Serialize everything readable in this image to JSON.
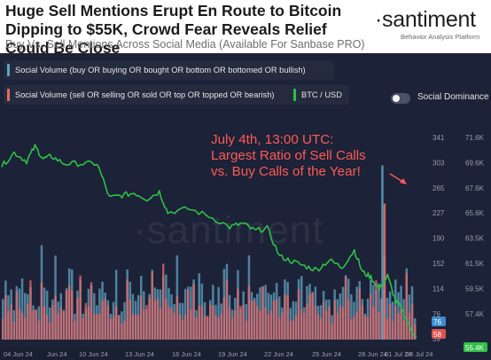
{
  "header": {
    "title": "Huge Sell Mentions Erupt En Route to Bitcoin Dipping to $55K, Crowd Fear Reveals Relief Could Be Close",
    "subtitle": "Buy Vs. Sell Mentions Across Social Media (Available For Sanbase PRO)"
  },
  "brand": {
    "logo": "·santiment",
    "tagline": "Behavior Analysis Platform",
    "watermark": "·santiment"
  },
  "legend": {
    "buy": "Social Volume (buy OR buying OR bought OR bottom OR bottomed OR bullish)",
    "sell": "Social Volume (sell OR selling OR sold OR top OR topped OR bearish)",
    "btc": "BTC / USD",
    "dominance": "Social Dominance"
  },
  "annotation": "July 4th, 13:00 UTC: Largest Ratio of Sell Calls vs. Buy Calls of the Year!",
  "colors": {
    "buy": "#5fa3c2",
    "sell": "#e36a6a",
    "btc": "#2fbf47",
    "annotation": "#ff5a55",
    "background": "#1c2237"
  },
  "chart_data": {
    "type": "bar",
    "x_ticks": [
      "04 Jun 24",
      "Jun 24",
      "10 Jun 24",
      "13 Jun 24",
      "16 Jun 24",
      "19 Jun 24",
      "22 Jun 24",
      "25 Jun 24",
      "28 Jun 24",
      "01 Jul 24",
      "04 Jul 24"
    ],
    "volume_axis": {
      "ticks": [
        341,
        303,
        265,
        227,
        190,
        152,
        114,
        76,
        39
      ],
      "current": 76
    },
    "price_axis": {
      "ticks": [
        "71.6K",
        "69.6K",
        "67.6K",
        "65.6K",
        "63.5K",
        "61.5K",
        "59.5K",
        "57.4K"
      ],
      "current": "55.4K",
      "range": [
        55400,
        71600
      ]
    },
    "sell_current": 58,
    "btc_anchors": [
      [
        0,
        69400
      ],
      [
        0.03,
        70500
      ],
      [
        0.06,
        69800
      ],
      [
        0.08,
        71000
      ],
      [
        0.1,
        70000
      ],
      [
        0.12,
        70200
      ],
      [
        0.15,
        69600
      ],
      [
        0.19,
        69600
      ],
      [
        0.23,
        69600
      ],
      [
        0.26,
        66800
      ],
      [
        0.29,
        67000
      ],
      [
        0.32,
        67200
      ],
      [
        0.35,
        66700
      ],
      [
        0.38,
        67300
      ],
      [
        0.4,
        65600
      ],
      [
        0.45,
        65900
      ],
      [
        0.5,
        65300
      ],
      [
        0.55,
        64400
      ],
      [
        0.58,
        64700
      ],
      [
        0.61,
        64100
      ],
      [
        0.64,
        64300
      ],
      [
        0.67,
        62000
      ],
      [
        0.7,
        61600
      ],
      [
        0.73,
        61200
      ],
      [
        0.76,
        60900
      ],
      [
        0.79,
        61700
      ],
      [
        0.82,
        61100
      ],
      [
        0.85,
        62500
      ],
      [
        0.87,
        60700
      ],
      [
        0.89,
        60300
      ],
      [
        0.91,
        59300
      ],
      [
        0.93,
        60400
      ],
      [
        0.95,
        58300
      ],
      [
        0.965,
        57700
      ],
      [
        0.98,
        56400
      ],
      [
        1.0,
        55400
      ]
    ],
    "spike_x": 0.915
  }
}
